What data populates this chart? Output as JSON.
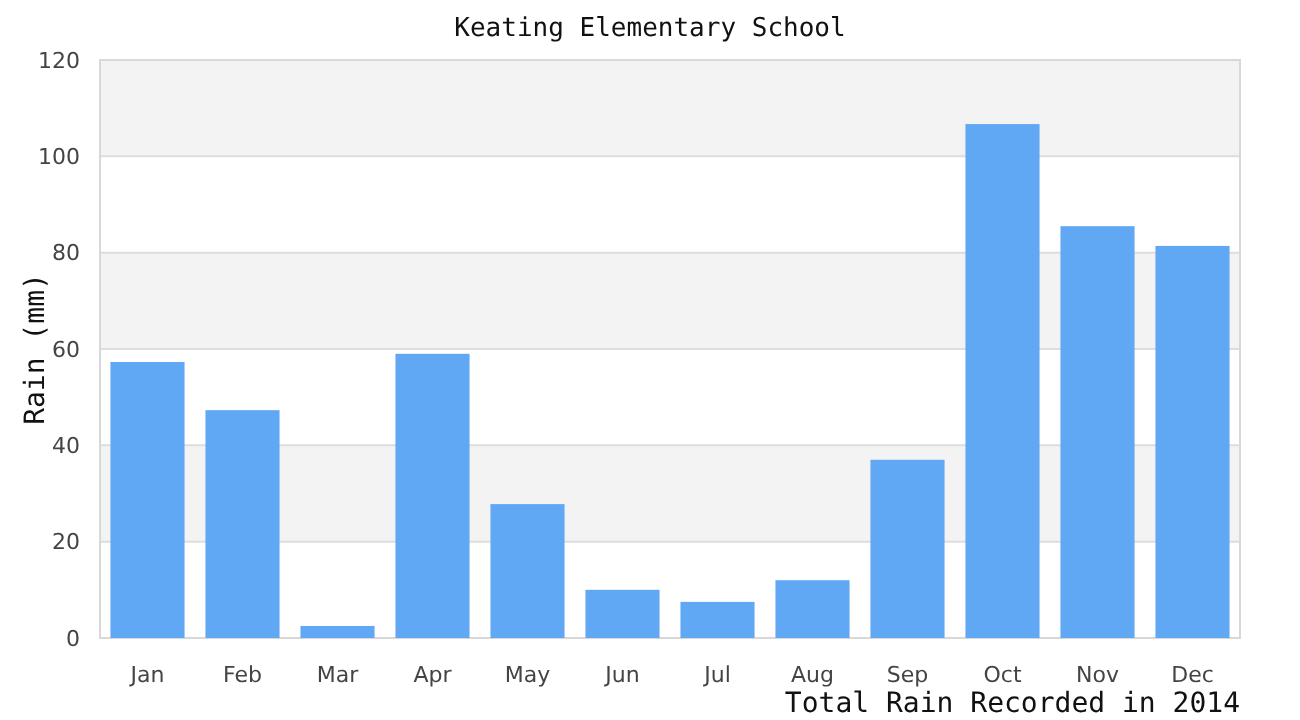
{
  "chart_data": {
    "type": "bar",
    "title": "Keating Elementary School",
    "xlabel": "Total Rain Recorded in 2014",
    "ylabel": "Rain (mm)",
    "categories": [
      "Jan",
      "Feb",
      "Mar",
      "Apr",
      "May",
      "Jun",
      "Jul",
      "Aug",
      "Sep",
      "Oct",
      "Nov",
      "Dec"
    ],
    "values": [
      57.3,
      47.3,
      2.5,
      59,
      27.8,
      10,
      7.5,
      12,
      37,
      106.7,
      85.5,
      81.4
    ],
    "color": "#60a8f4",
    "ylim": [
      0,
      120
    ],
    "yticks": [
      0,
      20,
      40,
      60,
      80,
      100,
      120
    ],
    "grid": "y"
  }
}
